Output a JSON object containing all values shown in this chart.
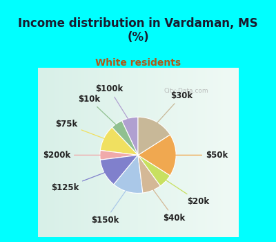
{
  "title": "Income distribution in Vardaman, MS\n(%)",
  "subtitle": "White residents",
  "title_color": "#1a1a2e",
  "subtitle_color": "#b05818",
  "background_color": "#00ffff",
  "labels": [
    "$100k",
    "$10k",
    "$75k",
    "$200k",
    "$125k",
    "$150k",
    "$40k",
    "$20k",
    "$50k",
    "$30k"
  ],
  "values": [
    7,
    5,
    11,
    4,
    12,
    13,
    8,
    6,
    18,
    16
  ],
  "colors": [
    "#b0a0d0",
    "#90c090",
    "#f0e060",
    "#f0aaaa",
    "#8080cc",
    "#aac8e8",
    "#d4b896",
    "#c8e060",
    "#f0a850",
    "#c8b898"
  ],
  "startangle": 90,
  "label_fontsize": 8.5,
  "wedge_linewidth": 0.8,
  "wedge_edgecolor": "white"
}
